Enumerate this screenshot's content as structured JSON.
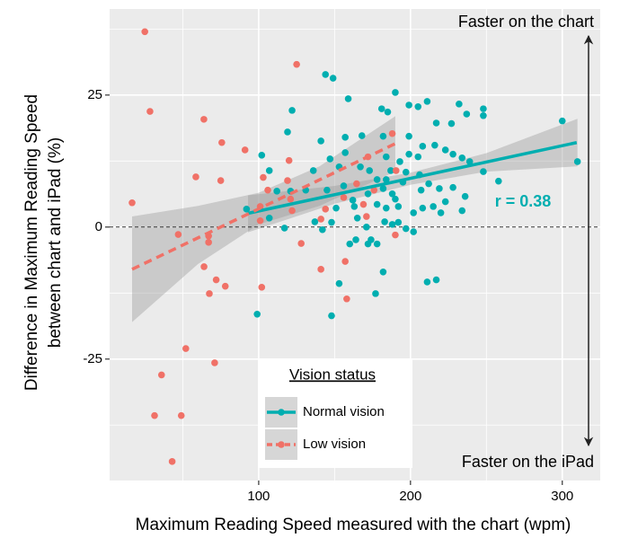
{
  "chart_data": {
    "type": "scatter",
    "xlabel": "Maximum Reading Speed measured with the chart (wpm)",
    "ylabel": [
      "Difference in Maximum Reading Speed",
      "between chart and iPad (%)"
    ],
    "xlim": [
      1.8,
      325
    ],
    "ylim": [
      -48,
      41.3
    ],
    "xticks": [
      100,
      200,
      300
    ],
    "yticks": [
      -25,
      0,
      25
    ],
    "grid": true,
    "hline": 0,
    "annotations": {
      "top": "Faster on the chart",
      "bottom": "Faster on the iPad",
      "r": "r = 0.38"
    },
    "legend": {
      "title": "Vision status",
      "position": "bottom"
    },
    "series": [
      {
        "name": "Normal vision",
        "color": "#00aeb0",
        "dash": false,
        "x": [
          144,
          149,
          159,
          190,
          199,
          205,
          211,
          217,
          227,
          232,
          237,
          248,
          248,
          300,
          310,
          258,
          248,
          239,
          234,
          228,
          223,
          216,
          208,
          199,
          199,
          205,
          182,
          181,
          185,
          168,
          157,
          157,
          141,
          122,
          119,
          102,
          107,
          136,
          147,
          153,
          167,
          173,
          178,
          182,
          188,
          192,
          202,
          208,
          215,
          223,
          234,
          236,
          228,
          219,
          212,
          207,
          156,
          145,
          131,
          121,
          112,
          92,
          107,
          117,
          137,
          142,
          148,
          163,
          165,
          171,
          174,
          178,
          183,
          188,
          192,
          197,
          202,
          160,
          164,
          172,
          182,
          177,
          153,
          148,
          99,
          211,
          217,
          184,
          187,
          193,
          197,
          195,
          190,
          184,
          178,
          172,
          162,
          151,
          206,
          220,
          184
        ],
        "values": [
          28.9,
          28.2,
          24.3,
          25.5,
          23.1,
          22.8,
          23.8,
          19.7,
          19.6,
          23.3,
          21.4,
          22.4,
          21.1,
          20.1,
          12.4,
          8.7,
          10.5,
          12.4,
          13.1,
          13.8,
          14.6,
          15.5,
          15.3,
          17.2,
          13.8,
          13.3,
          17.2,
          22.4,
          21.8,
          17.3,
          17,
          14.1,
          16.3,
          22.1,
          18,
          13.6,
          10.7,
          10.7,
          12.9,
          11.4,
          11.4,
          10.7,
          9,
          7.3,
          6.3,
          3.9,
          2.7,
          3.6,
          3.9,
          4.8,
          3.1,
          5.8,
          7.5,
          7.3,
          8.2,
          7,
          7.8,
          7,
          7,
          6.8,
          6.8,
          3.4,
          1.7,
          -0.2,
          1,
          -0.5,
          0.9,
          3.9,
          1.7,
          0,
          -2.4,
          -3.2,
          1,
          0.5,
          0.9,
          -0.3,
          -0.9,
          -3.2,
          -2.4,
          -3.2,
          -8.5,
          -12.6,
          -10.7,
          -16.8,
          -16.5,
          -10.4,
          -10,
          13.3,
          10.7,
          12.4,
          10.4,
          8.5,
          5.3,
          3.6,
          4.3,
          6.3,
          5.1,
          3.6,
          9.9,
          2.7,
          9
        ],
        "fit": {
          "x": [
            93,
            309.5
          ],
          "values": [
            2.6,
            16
          ]
        },
        "band": {
          "x": [
            93,
            150,
            200,
            250,
            310
          ],
          "upper": [
            6,
            7.8,
            10.3,
            14,
            20.5
          ],
          "lower": [
            -1,
            4.4,
            8,
            10.5,
            11.5
          ]
        }
      },
      {
        "name": "Low vision",
        "color": "#f07167",
        "dash": true,
        "x": [
          25,
          28.4,
          16.6,
          63.9,
          75.7,
          75,
          58.6,
          91,
          47,
          67,
          67,
          64,
          72,
          67.5,
          78,
          102,
          52,
          71,
          36,
          31.4,
          49,
          43,
          125,
          103,
          106,
          101,
          101,
          119,
          120,
          121,
          122,
          128,
          141,
          144,
          141,
          157,
          158,
          156,
          164.5,
          172,
          169,
          171,
          176,
          188,
          190.5,
          190
        ],
        "values": [
          37,
          21.9,
          4.6,
          20.4,
          16,
          8.8,
          9.5,
          14.6,
          -1.4,
          -1.7,
          -2.9,
          -7.5,
          -10,
          -12.6,
          -11.2,
          -11.4,
          -23,
          -25.7,
          -28,
          -35.7,
          -35.7,
          -44.4,
          30.8,
          9.4,
          7,
          3.9,
          1.2,
          8.8,
          12.6,
          5.3,
          3.1,
          -3.1,
          -8,
          3.4,
          1.5,
          -6.5,
          -13.6,
          5.6,
          8.2,
          13.3,
          4.3,
          2,
          7,
          17.7,
          10.7,
          -1.5
        ],
        "fit": {
          "x": [
            16.6,
            190
          ],
          "values": [
            -8,
            15.8
          ]
        },
        "band": {
          "x": [
            16.6,
            60,
            100,
            140,
            190
          ],
          "upper": [
            2,
            4,
            6.5,
            11.5,
            21
          ],
          "lower": [
            -18,
            -7,
            0.5,
            4,
            10.5
          ]
        }
      }
    ]
  }
}
